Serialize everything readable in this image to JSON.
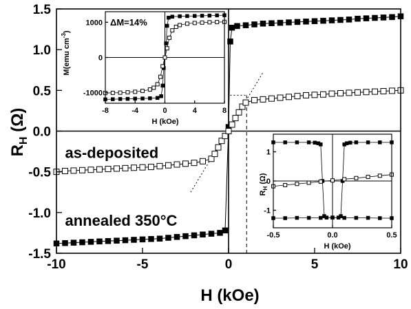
{
  "chart_data": {
    "main": {
      "type": "scatter",
      "title": "",
      "xlabel": "H (kOe)",
      "ylabel_main": "R",
      "ylabel_sub": "H",
      "ylabel_unit": " (Ω)",
      "xlim": [
        -10,
        10
      ],
      "ylim": [
        -1.5,
        1.5
      ],
      "xticks": [
        -10,
        -5,
        0,
        5,
        10
      ],
      "xtick_labels": [
        "-10",
        "-5",
        "0",
        "5",
        "10"
      ],
      "yticks": [
        -1.5,
        -1.0,
        -0.5,
        0.0,
        0.5,
        1.0,
        1.5
      ],
      "ytick_labels": [
        "-1.5",
        "-1.0",
        "-0.5",
        "0.0",
        "0.5",
        "1.0",
        "1.5"
      ],
      "annotations": [
        {
          "text": "as-deposited",
          "x": -9.5,
          "y": -0.33
        },
        {
          "text": "annealed 350°C",
          "x": -9.5,
          "y": -1.16
        }
      ],
      "series": [
        {
          "marker": "filled-square",
          "x": [
            -10,
            -9.5,
            -9,
            -8.5,
            -8,
            -7.5,
            -7,
            -6.5,
            -6,
            -5.5,
            -5,
            -4.5,
            -4,
            -3.5,
            -3,
            -2.5,
            -2,
            -1.5,
            -1,
            -0.5,
            -0.2,
            0.0,
            0.1,
            0.2,
            0.5,
            1,
            1.5,
            2,
            2.5,
            3,
            3.5,
            4,
            4.5,
            5,
            5.5,
            6,
            6.5,
            7,
            7.5,
            8,
            8.5,
            9,
            9.5,
            10
          ],
          "y": [
            -1.38,
            -1.375,
            -1.37,
            -1.365,
            -1.36,
            -1.355,
            -1.35,
            -1.345,
            -1.34,
            -1.335,
            -1.33,
            -1.325,
            -1.32,
            -1.31,
            -1.3,
            -1.29,
            -1.28,
            -1.27,
            -1.26,
            -1.25,
            -1.22,
            0.05,
            1.1,
            1.27,
            1.29,
            1.3,
            1.31,
            1.32,
            1.325,
            1.33,
            1.335,
            1.34,
            1.345,
            1.35,
            1.355,
            1.36,
            1.365,
            1.37,
            1.38,
            1.385,
            1.39,
            1.395,
            1.4,
            1.41
          ]
        },
        {
          "marker": "open-square",
          "x": [
            -10,
            -9.5,
            -9,
            -8.5,
            -8,
            -7.5,
            -7,
            -6.5,
            -6,
            -5.5,
            -5,
            -4.5,
            -4,
            -3.5,
            -3,
            -2.5,
            -2,
            -1.5,
            -1,
            -0.8,
            -0.6,
            -0.4,
            -0.2,
            0.0,
            0.2,
            0.4,
            0.6,
            0.8,
            1,
            1.5,
            2,
            2.5,
            3,
            3.5,
            4,
            4.5,
            5,
            5.5,
            6,
            6.5,
            7,
            7.5,
            8,
            8.5,
            9,
            9.5,
            10
          ],
          "y": [
            -0.5,
            -0.49,
            -0.485,
            -0.48,
            -0.475,
            -0.47,
            -0.465,
            -0.46,
            -0.455,
            -0.45,
            -0.445,
            -0.44,
            -0.43,
            -0.42,
            -0.41,
            -0.4,
            -0.39,
            -0.37,
            -0.34,
            -0.28,
            -0.2,
            -0.12,
            -0.06,
            0.0,
            0.08,
            0.16,
            0.23,
            0.3,
            0.35,
            0.38,
            0.39,
            0.4,
            0.41,
            0.42,
            0.43,
            0.44,
            0.445,
            0.45,
            0.46,
            0.465,
            0.47,
            0.475,
            0.48,
            0.485,
            0.49,
            0.495,
            0.5
          ]
        }
      ],
      "guides": {
        "dotted_tangent": {
          "x": [
            -2.2,
            2.0
          ],
          "y": [
            -0.75,
            0.72
          ]
        },
        "dotted_horizontal": {
          "x": [
            0.1,
            1.05
          ],
          "y": [
            0.44,
            0.44
          ]
        },
        "dashed_vertical": {
          "x": [
            1.05,
            1.05
          ],
          "y": [
            -1.5,
            0.44
          ]
        }
      }
    },
    "inset_magnetization": {
      "type": "scatter",
      "xlabel": "H (kOe)",
      "ylabel": "M(emu cm",
      "ylabel_sup": "-3",
      "ylabel_close": ")",
      "annotation": "ΔM=14%",
      "xlim": [
        -8,
        8
      ],
      "ylim": [
        -1300,
        1300
      ],
      "xticks": [
        -8,
        -4,
        0,
        4,
        8
      ],
      "xtick_labels": [
        "-8",
        "-4",
        "0",
        "4",
        "8"
      ],
      "yticks": [
        -1000,
        0,
        1000
      ],
      "ytick_labels": [
        "-1000",
        "0",
        "1000"
      ],
      "series": [
        {
          "marker": "filled-square",
          "x": [
            -8,
            -7,
            -6,
            -5,
            -4,
            -3,
            -2,
            -1,
            -0.5,
            -0.3,
            -0.15,
            0,
            0.15,
            0.3,
            0.5,
            1,
            2,
            3,
            4,
            5,
            6,
            7,
            8
          ],
          "y": [
            -1190,
            -1185,
            -1180,
            -1175,
            -1170,
            -1165,
            -1160,
            -1150,
            -1100,
            -800,
            -300,
            0,
            400,
            900,
            1130,
            1160,
            1170,
            1175,
            1180,
            1185,
            1190,
            1195,
            1200
          ]
        },
        {
          "marker": "open-square",
          "x": [
            -8,
            -7,
            -6,
            -5,
            -4,
            -3,
            -2,
            -1.5,
            -1,
            -0.6,
            -0.3,
            0,
            0.3,
            0.6,
            1,
            1.5,
            2,
            3,
            4,
            5,
            6,
            7,
            8
          ],
          "y": [
            -1010,
            -1005,
            -1000,
            -990,
            -975,
            -950,
            -910,
            -860,
            -760,
            -550,
            -250,
            0,
            260,
            560,
            770,
            870,
            920,
            960,
            980,
            990,
            1000,
            1005,
            1010
          ]
        }
      ]
    },
    "inset_resistance": {
      "type": "line",
      "xlabel": "H (kOe)",
      "ylabel_main": "R",
      "ylabel_sub": "H",
      "ylabel_unit": " (Ω)",
      "xlim": [
        -0.5,
        0.5
      ],
      "ylim": [
        -1.6,
        1.6
      ],
      "xticks": [
        -0.5,
        0.0,
        0.5
      ],
      "xtick_labels": [
        "-0.5",
        "0.0",
        "0.5"
      ],
      "yticks": [
        -1,
        0,
        1
      ],
      "ytick_labels": [
        "-1",
        "0",
        "1"
      ],
      "series": [
        {
          "marker": "filled-square",
          "loop": "upper-branch",
          "x": [
            -0.5,
            -0.4,
            -0.3,
            -0.2,
            -0.15,
            -0.12,
            -0.1,
            -0.085,
            -0.07,
            -0.05,
            0.0,
            0.1,
            0.2,
            0.3,
            0.4,
            0.5
          ],
          "y": [
            1.32,
            1.32,
            1.32,
            1.32,
            1.31,
            1.29,
            1.25,
            0.0,
            -1.2,
            -1.25,
            -1.25,
            -1.26,
            -1.26,
            -1.26,
            -1.27,
            -1.27
          ]
        },
        {
          "marker": "filled-square",
          "loop": "lower-branch",
          "x": [
            -0.5,
            -0.4,
            -0.3,
            -0.2,
            -0.1,
            0.0,
            0.05,
            0.07,
            0.085,
            0.1,
            0.12,
            0.15,
            0.2,
            0.3,
            0.4,
            0.5
          ],
          "y": [
            -1.27,
            -1.27,
            -1.26,
            -1.26,
            -1.26,
            -1.25,
            -1.25,
            -1.2,
            0.0,
            1.25,
            1.29,
            1.31,
            1.32,
            1.32,
            1.32,
            1.32
          ]
        },
        {
          "marker": "open-square",
          "loop": "as-deposited",
          "x": [
            -0.5,
            -0.4,
            -0.3,
            -0.2,
            -0.1,
            0.0,
            0.1,
            0.2,
            0.3,
            0.4,
            0.5
          ],
          "y": [
            -0.18,
            -0.14,
            -0.1,
            -0.06,
            -0.02,
            0.02,
            0.06,
            0.1,
            0.14,
            0.18,
            0.22
          ]
        }
      ]
    }
  }
}
